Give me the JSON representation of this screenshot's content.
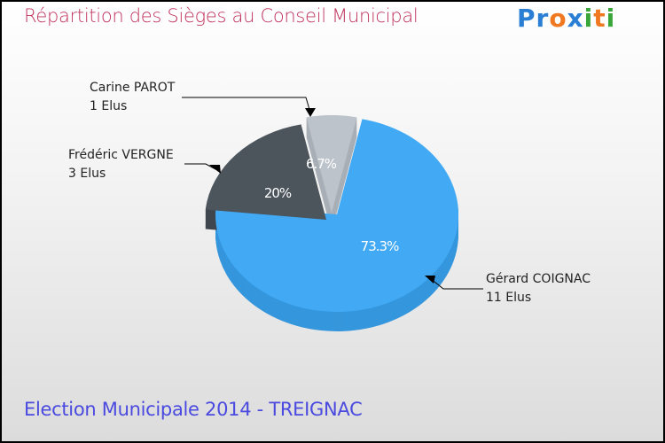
{
  "title": "Répartition des Sièges au Conseil Municipal",
  "logo": "Proxiti",
  "subtitle": "Election Municipale 2014 - TREIGNAC",
  "chart_data": {
    "type": "pie",
    "title": "Répartition des Sièges au Conseil Municipal",
    "slices": [
      {
        "name": "Gérard COIGNAC",
        "seats_label": "11 Elus",
        "value": 11,
        "percent_label": "73.3%",
        "color": "#42aaf4",
        "side": "#3596dc"
      },
      {
        "name": "Frédéric VERGNE",
        "seats_label": "3 Elus",
        "value": 3,
        "percent_label": "20%",
        "color": "#4c545c",
        "side": "#3f464d"
      },
      {
        "name": "Carine PAROT",
        "seats_label": "1 Elus",
        "value": 1,
        "percent_label": "6.7%",
        "color": "#bcc3ca",
        "side": "#a8afb6"
      }
    ]
  }
}
